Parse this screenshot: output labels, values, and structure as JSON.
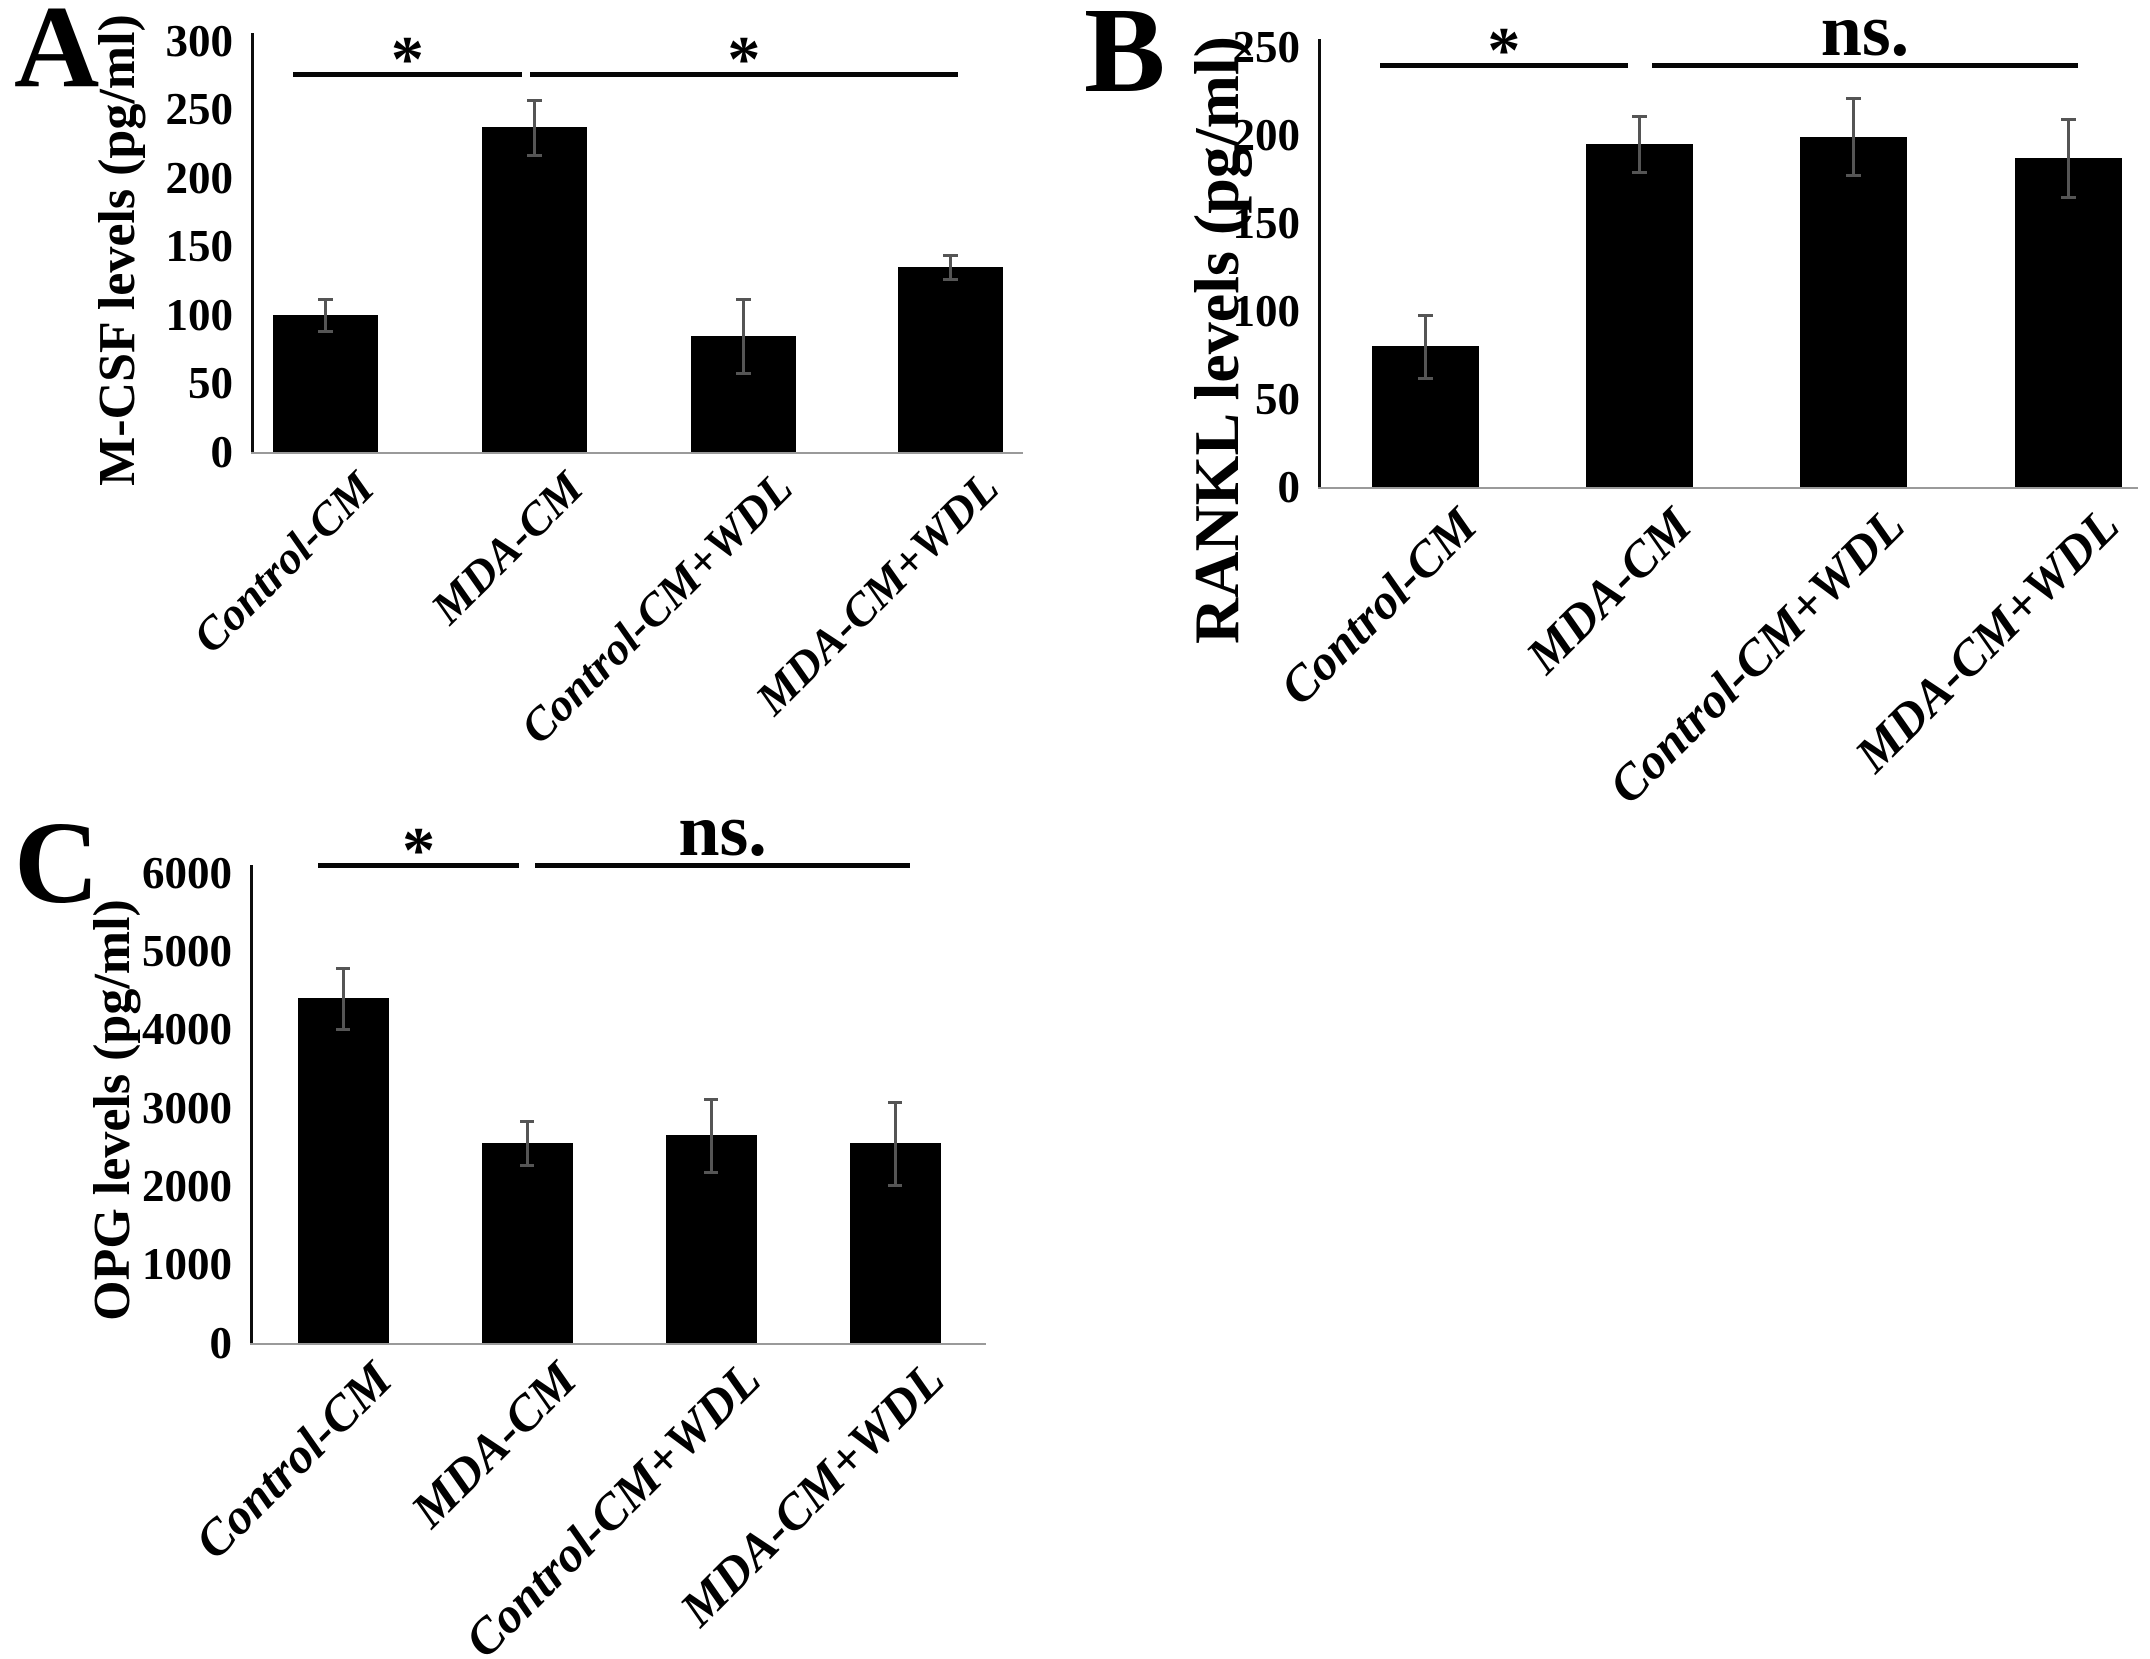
{
  "figure_background": "#ffffff",
  "bar_color": "#000000",
  "error_bar_color": "#555555",
  "axis_color": "#0d0d0d",
  "baseline_color": "#9a9a9a",
  "chart_data": [
    {
      "type": "bar",
      "panel_letter": "A",
      "title": "",
      "xlabel": "",
      "ylabel": "M-CSF levels (pg/ml)",
      "categories": [
        "Control-CM",
        "MDA-CM",
        "Control-CM+WDL",
        "MDA-CM+WDL"
      ],
      "values": [
        100,
        237,
        85,
        135
      ],
      "errors": [
        12,
        20,
        27,
        9
      ],
      "ylim": [
        0,
        300
      ],
      "yticks": [
        0,
        50,
        100,
        150,
        200,
        250,
        300
      ],
      "grid": false,
      "legend": false,
      "significance": [
        {
          "between": [
            "Control-CM",
            "MDA-CM"
          ],
          "label": "*"
        },
        {
          "between": [
            "MDA-CM",
            "MDA-CM+WDL"
          ],
          "label": "*"
        }
      ]
    },
    {
      "type": "bar",
      "panel_letter": "B",
      "title": "",
      "xlabel": "",
      "ylabel": "RANKL levels (pg/ml)",
      "categories": [
        "Control-CM",
        "MDA-CM",
        "Control-CM+WDL",
        "MDA-CM+WDL"
      ],
      "values": [
        80,
        195,
        199,
        187
      ],
      "errors": [
        18,
        16,
        22,
        22
      ],
      "ylim": [
        0,
        250
      ],
      "yticks": [
        0,
        50,
        100,
        150,
        200,
        250
      ],
      "grid": false,
      "legend": false,
      "significance": [
        {
          "between": [
            "Control-CM",
            "MDA-CM"
          ],
          "label": "*"
        },
        {
          "between": [
            "MDA-CM",
            "MDA-CM+WDL"
          ],
          "label": "ns."
        }
      ]
    },
    {
      "type": "bar",
      "panel_letter": "C",
      "title": "",
      "xlabel": "",
      "ylabel": "OPG levels (pg/ml)",
      "categories": [
        "Control-CM",
        "MDA-CM",
        "Control-CM+WDL",
        "MDA-CM+WDL"
      ],
      "values": [
        4400,
        2550,
        2650,
        2550
      ],
      "errors": [
        390,
        280,
        470,
        530
      ],
      "ylim": [
        0,
        6000
      ],
      "yticks": [
        0,
        1000,
        2000,
        3000,
        4000,
        5000,
        6000
      ],
      "grid": false,
      "legend": false,
      "significance": [
        {
          "between": [
            "Control-CM",
            "MDA-CM"
          ],
          "label": "*"
        },
        {
          "between": [
            "MDA-CM",
            "MDA-CM+WDL"
          ],
          "label": "ns."
        }
      ]
    }
  ]
}
